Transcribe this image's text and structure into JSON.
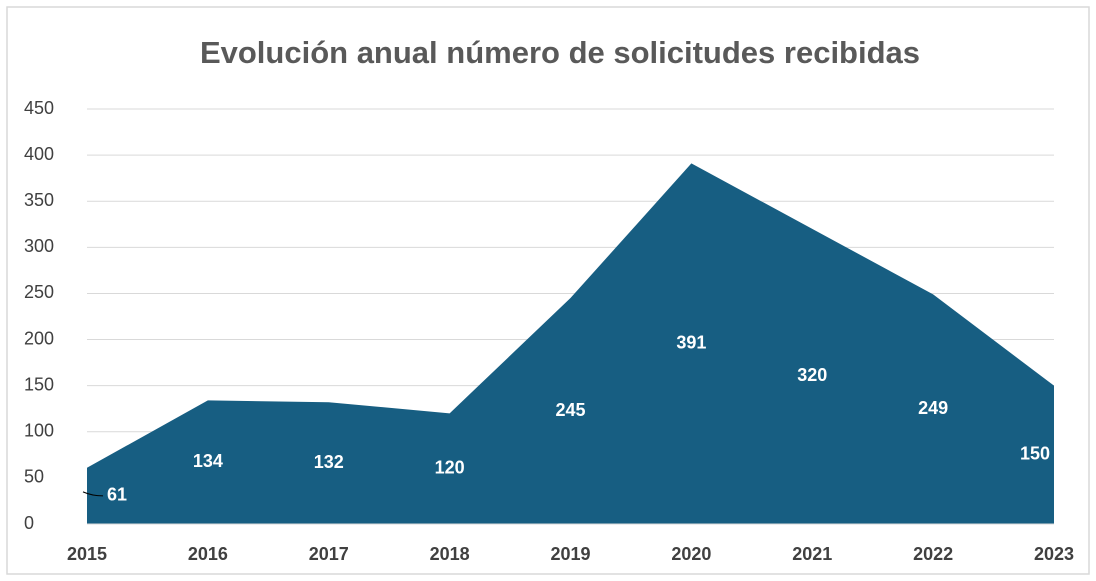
{
  "chart_data": {
    "type": "area",
    "title": "Evolución anual número de solicitudes recibidas",
    "categories": [
      "2015",
      "2016",
      "2017",
      "2018",
      "2019",
      "2020",
      "2021",
      "2022",
      "2023"
    ],
    "values": [
      61,
      134,
      132,
      120,
      245,
      391,
      320,
      249,
      150
    ],
    "color": "#175e82",
    "ylim": [
      0,
      450
    ],
    "yticks": [
      0,
      50,
      100,
      150,
      200,
      250,
      300,
      350,
      400,
      450
    ],
    "grid": true
  }
}
